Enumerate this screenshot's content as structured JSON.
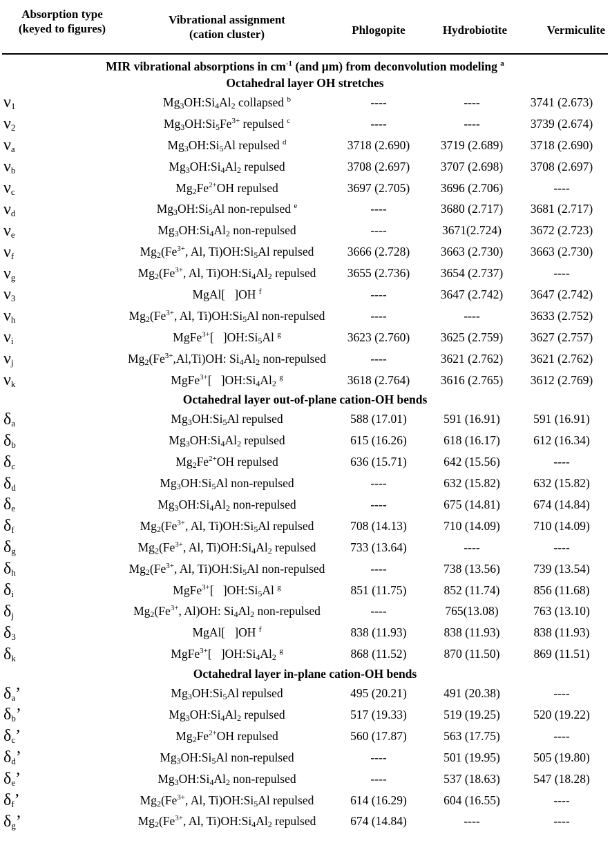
{
  "table": {
    "headers": {
      "type": "Absorption type (keyed to figures)",
      "assignment": "Vibrational assignment (cation cluster)",
      "phlogopite": "Phlogopite",
      "hydrobiotite": "Hydrobiotite",
      "vermiculite": "Vermiculite"
    },
    "caption": "MIR vibrational absorptions in cm-1 (and μm) from deconvolution modeling a",
    "sections": [
      {
        "title": "Octahedral layer OH stretches",
        "rows": [
          {
            "symbol": "ν1",
            "assignment": "Mg3OH:Si4Al2 collapsed b",
            "phlogopite": "----",
            "hydrobiotite": "----",
            "vermiculite": "3741 (2.673)"
          },
          {
            "symbol": "ν2",
            "assignment": "Mg3OH:Si5Fe3+ repulsed c",
            "phlogopite": "----",
            "hydrobiotite": "----",
            "vermiculite": "3739 (2.674)"
          },
          {
            "symbol": "νa",
            "assignment": "Mg3OH:Si5Al repulsed d",
            "phlogopite": "3718 (2.690)",
            "hydrobiotite": "3719 (2.689)",
            "vermiculite": "3718 (2.690)"
          },
          {
            "symbol": "νb",
            "assignment": "Mg3OH:Si4Al2 repulsed",
            "phlogopite": "3708 (2.697)",
            "hydrobiotite": "3707 (2.698)",
            "vermiculite": "3708 (2.697)"
          },
          {
            "symbol": "νc",
            "assignment": "Mg2Fe2+OH repulsed",
            "phlogopite": "3697 (2.705)",
            "hydrobiotite": "3696 (2.706)",
            "vermiculite": "----"
          },
          {
            "symbol": "νd",
            "assignment": "Mg3OH:Si5Al non-repulsed e",
            "phlogopite": "----",
            "hydrobiotite": "3680 (2.717)",
            "vermiculite": "3681 (2.717)"
          },
          {
            "symbol": "νe",
            "assignment": "Mg3OH:Si4Al2 non-repulsed",
            "phlogopite": "----",
            "hydrobiotite": "3671(2.724)",
            "vermiculite": "3672 (2.723)"
          },
          {
            "symbol": "νf",
            "assignment": "Mg2(Fe3+, Al, Ti)OH:Si5Al repulsed",
            "phlogopite": "3666 (2.728)",
            "hydrobiotite": "3663 (2.730)",
            "vermiculite": "3663 (2.730)"
          },
          {
            "symbol": "νg",
            "assignment": "Mg2(Fe3+, Al, Ti)OH:Si4Al2 repulsed",
            "phlogopite": "3655 (2.736)",
            "hydrobiotite": "3654 (2.737)",
            "vermiculite": "----"
          },
          {
            "symbol": "ν3",
            "assignment": "MgAl[ ]OH f",
            "phlogopite": "----",
            "hydrobiotite": "3647 (2.742)",
            "vermiculite": "3647 (2.742)"
          },
          {
            "symbol": "νh",
            "assignment": "Mg2(Fe3+, Al, Ti)OH:Si5Al non-repulsed",
            "phlogopite": "----",
            "hydrobiotite": "----",
            "vermiculite": "3633 (2.752)"
          },
          {
            "symbol": "νi",
            "assignment": "MgFe3+[ ]OH:Si5Al g",
            "phlogopite": "3623 (2.760)",
            "hydrobiotite": "3625 (2.759)",
            "vermiculite": "3627 (2.757)"
          },
          {
            "symbol": "νj",
            "assignment": "Mg2(Fe3+,Al,Ti)OH: Si4Al2 non-repulsed",
            "phlogopite": "----",
            "hydrobiotite": "3621 (2.762)",
            "vermiculite": "3621 (2.762)"
          },
          {
            "symbol": "νk",
            "assignment": "MgFe3+[ ]OH:Si4Al2 g",
            "phlogopite": "3618 (2.764)",
            "hydrobiotite": "3616 (2.765)",
            "vermiculite": "3612 (2.769)"
          }
        ]
      },
      {
        "title": "Octahedral layer out-of-plane cation-OH bends",
        "rows": [
          {
            "symbol": "δa",
            "assignment": "Mg3OH:Si5Al repulsed",
            "phlogopite": "588 (17.01)",
            "hydrobiotite": "591 (16.91)",
            "vermiculite": "591 (16.91)"
          },
          {
            "symbol": "δb",
            "assignment": "Mg3OH:Si4Al2 repulsed",
            "phlogopite": "615 (16.26)",
            "hydrobiotite": "618 (16.17)",
            "vermiculite": "612 (16.34)"
          },
          {
            "symbol": "δc",
            "assignment": "Mg2Fe2+OH repulsed",
            "phlogopite": "636 (15.71)",
            "hydrobiotite": "642 (15.56)",
            "vermiculite": "----"
          },
          {
            "symbol": "δd",
            "assignment": "Mg3OH:Si5Al non-repulsed",
            "phlogopite": "----",
            "hydrobiotite": "632 (15.82)",
            "vermiculite": "632 (15.82)"
          },
          {
            "symbol": "δe",
            "assignment": "Mg3OH:Si4Al2 non-repulsed",
            "phlogopite": "----",
            "hydrobiotite": "675 (14.81)",
            "vermiculite": "674 (14.84)"
          },
          {
            "symbol": "δf",
            "assignment": "Mg2(Fe3+, Al, Ti)OH:Si5Al repulsed",
            "phlogopite": "708 (14.13)",
            "hydrobiotite": "710 (14.09)",
            "vermiculite": "710 (14.09)"
          },
          {
            "symbol": "δg",
            "assignment": "Mg2(Fe3+, Al, Ti)OH:Si4Al2 repulsed",
            "phlogopite": "733 (13.64)",
            "hydrobiotite": "----",
            "vermiculite": "----"
          },
          {
            "symbol": "δh",
            "assignment": "Mg2(Fe3+, Al, Ti)OH:Si5Al non-repulsed",
            "phlogopite": "----",
            "hydrobiotite": "738 (13.56)",
            "vermiculite": "739 (13.54)"
          },
          {
            "symbol": "δi",
            "assignment": "MgFe3+[ ]OH:Si5Al g",
            "phlogopite": "851 (11.75)",
            "hydrobiotite": "852 (11.74)",
            "vermiculite": "856 (11.68)"
          },
          {
            "symbol": "δj",
            "assignment": "Mg2(Fe3+, Al)OH: Si4Al2 non-repulsed",
            "phlogopite": "----",
            "hydrobiotite": "765(13.08)",
            "vermiculite": "763 (13.10)"
          },
          {
            "symbol": "δ3",
            "assignment": "MgAl[ ]OH f",
            "phlogopite": "838 (11.93)",
            "hydrobiotite": "838 (11.93)",
            "vermiculite": "838 (11.93)"
          },
          {
            "symbol": "δk",
            "assignment": "MgFe3+[ ]OH:Si4Al2 g",
            "phlogopite": "868 (11.52)",
            "hydrobiotite": "870 (11.50)",
            "vermiculite": "869 (11.51)"
          }
        ]
      },
      {
        "title": "Octahedral layer in-plane cation-OH bends",
        "rows": [
          {
            "symbol": "δa’",
            "assignment": "Mg3OH:Si5Al repulsed",
            "phlogopite": "495 (20.21)",
            "hydrobiotite": "491 (20.38)",
            "vermiculite": "----"
          },
          {
            "symbol": "δb’",
            "assignment": "Mg3OH:Si4Al2 repulsed",
            "phlogopite": "517 (19.33)",
            "hydrobiotite": "519 (19.25)",
            "vermiculite": "520 (19.22)"
          },
          {
            "symbol": "δc’",
            "assignment": "Mg2Fe2+OH repulsed",
            "phlogopite": "560 (17.87)",
            "hydrobiotite": "563 (17.75)",
            "vermiculite": "----"
          },
          {
            "symbol": "δd’",
            "assignment": "Mg3OH:Si5Al non-repulsed",
            "phlogopite": "----",
            "hydrobiotite": "501 (19.95)",
            "vermiculite": "505 (19.80)"
          },
          {
            "symbol": "δe’",
            "assignment": "Mg3OH:Si4Al2 non-repulsed",
            "phlogopite": "----",
            "hydrobiotite": "537 (18.63)",
            "vermiculite": "547 (18.28)"
          },
          {
            "symbol": "δf’",
            "assignment": "Mg2(Fe3+, Al, Ti)OH:Si5Al repulsed",
            "phlogopite": "614 (16.29)",
            "hydrobiotite": "604 (16.55)",
            "vermiculite": "----"
          },
          {
            "symbol": "δg’",
            "assignment": "Mg2(Fe3+, Al, Ti)OH:Si4Al2 repulsed",
            "phlogopite": "674 (14.84)",
            "hydrobiotite": "----",
            "vermiculite": "----"
          }
        ]
      }
    ]
  }
}
